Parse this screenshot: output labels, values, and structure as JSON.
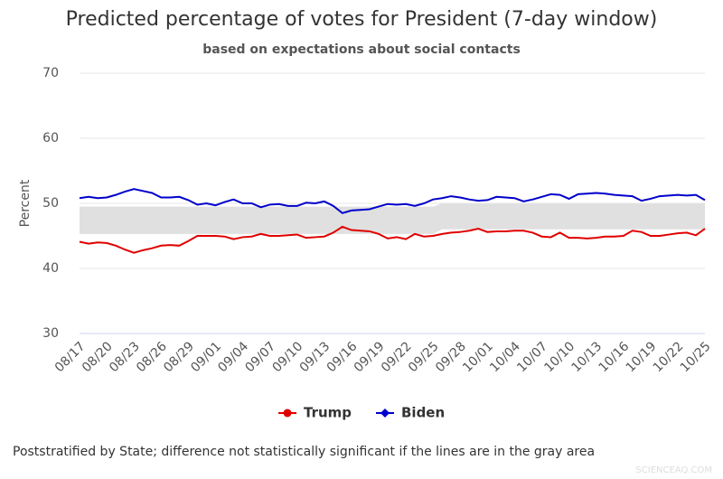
{
  "chart_data": {
    "type": "line",
    "title": "Predicted percentage of votes for President (7-day window)",
    "subtitle": "based on expectations about social contacts",
    "y_label": "Percent",
    "footnote": "Poststratified by State; difference not statistically significant if the lines are in the gray area",
    "watermark": "SCIENCEAQ.COM",
    "categories": [
      "08/17",
      null,
      null,
      "08/20",
      null,
      null,
      "08/23",
      null,
      null,
      "08/26",
      null,
      null,
      "08/29",
      null,
      null,
      "09/01",
      null,
      null,
      "09/04",
      null,
      null,
      "09/07",
      null,
      null,
      "09/10",
      null,
      null,
      "09/13",
      null,
      null,
      "09/16",
      null,
      null,
      "09/19",
      null,
      null,
      "09/22",
      null,
      null,
      "09/25",
      null,
      null,
      "09/28",
      null,
      null,
      "10/01",
      null,
      null,
      "10/04",
      null,
      null,
      "10/07",
      null,
      null,
      "10/10",
      null,
      null,
      "10/13",
      null,
      null,
      "10/16",
      null,
      null,
      "10/19",
      null,
      null,
      "10/22",
      null,
      null,
      "10/25"
    ],
    "series": [
      {
        "name": "Trump",
        "color": "#e00000",
        "marker": "circle",
        "values": [
          44.1,
          43.8,
          44.0,
          43.9,
          43.5,
          42.9,
          42.4,
          42.8,
          43.1,
          43.5,
          43.6,
          43.5,
          44.2,
          45.0,
          45.0,
          45.0,
          44.9,
          44.5,
          44.8,
          44.9,
          45.3,
          45.0,
          45.0,
          45.1,
          45.2,
          44.7,
          44.8,
          44.9,
          45.5,
          46.4,
          45.9,
          45.8,
          45.7,
          45.3,
          44.6,
          44.8,
          44.5,
          45.3,
          44.9,
          45.0,
          45.3,
          45.5,
          45.6,
          45.8,
          46.1,
          45.6,
          45.7,
          45.7,
          45.8,
          45.8,
          45.5,
          44.9,
          44.8,
          45.5,
          44.7,
          44.7,
          44.6,
          44.7,
          44.9,
          44.9,
          45.0,
          45.8,
          45.6,
          45.0,
          45.0,
          45.2,
          45.4,
          45.5,
          45.1,
          46.1
        ]
      },
      {
        "name": "Biden",
        "color": "#0000cc",
        "marker": "diamond",
        "values": [
          50.8,
          51.0,
          50.8,
          50.9,
          51.3,
          51.8,
          52.2,
          51.9,
          51.6,
          50.9,
          50.9,
          51.0,
          50.5,
          49.8,
          50.0,
          49.7,
          50.2,
          50.6,
          50.0,
          50.0,
          49.4,
          49.8,
          49.9,
          49.6,
          49.6,
          50.1,
          50.0,
          50.3,
          49.6,
          48.5,
          48.9,
          49.0,
          49.1,
          49.5,
          49.9,
          49.8,
          49.9,
          49.6,
          50.0,
          50.6,
          50.8,
          51.1,
          50.9,
          50.6,
          50.4,
          50.5,
          51.0,
          50.9,
          50.8,
          50.3,
          50.6,
          51.0,
          51.4,
          51.3,
          50.7,
          51.4,
          51.5,
          51.6,
          51.5,
          51.3,
          51.2,
          51.1,
          50.4,
          50.7,
          51.1,
          51.2,
          51.3,
          51.2,
          51.3,
          50.5
        ]
      }
    ],
    "band": {
      "color": "#e0e0e0",
      "upper": [
        49.5,
        49.5,
        49.5,
        49.5,
        49.5,
        49.5,
        49.5,
        49.5,
        49.5,
        49.5,
        49.5,
        49.5,
        49.5,
        49.5,
        49.5,
        49.5,
        49.5,
        49.5,
        49.5,
        49.5,
        49.5,
        49.5,
        49.5,
        49.5,
        49.5,
        49.5,
        49.5,
        49.5,
        49.5,
        49.5,
        49.5,
        49.5,
        49.5,
        49.5,
        49.5,
        49.5,
        49.5,
        49.5,
        49.5,
        49.5,
        50.0,
        50.0,
        50.0,
        50.0,
        50.0,
        50.0,
        50.0,
        50.0,
        50.0,
        50.0,
        50.0,
        50.0,
        50.0,
        50.0,
        50.0,
        50.0,
        50.0,
        50.0,
        50.0,
        50.0,
        50.0,
        50.0,
        50.0,
        50.0,
        50.0,
        50.0,
        50.0,
        50.0,
        50.0,
        50.0
      ],
      "lower": [
        45.3,
        45.3,
        45.3,
        45.3,
        45.3,
        45.3,
        45.3,
        45.3,
        45.3,
        45.3,
        45.3,
        45.3,
        45.3,
        45.3,
        45.3,
        45.3,
        45.3,
        45.3,
        45.3,
        45.3,
        45.3,
        45.3,
        45.3,
        45.3,
        45.3,
        45.3,
        45.3,
        45.3,
        45.3,
        45.3,
        45.3,
        45.3,
        45.3,
        45.3,
        45.3,
        45.3,
        45.3,
        45.3,
        45.3,
        45.3,
        46.0,
        46.0,
        46.0,
        46.0,
        46.0,
        46.0,
        46.0,
        46.0,
        46.0,
        46.0,
        46.0,
        46.0,
        46.0,
        46.0,
        46.0,
        46.0,
        46.0,
        46.0,
        46.0,
        46.0,
        46.0,
        46.0,
        46.0,
        46.0,
        46.0,
        46.0,
        46.0,
        46.0,
        46.0,
        46.0
      ]
    },
    "ylim": [
      30,
      70
    ],
    "yticks": [
      30,
      40,
      50,
      60,
      70
    ],
    "grid": true
  }
}
